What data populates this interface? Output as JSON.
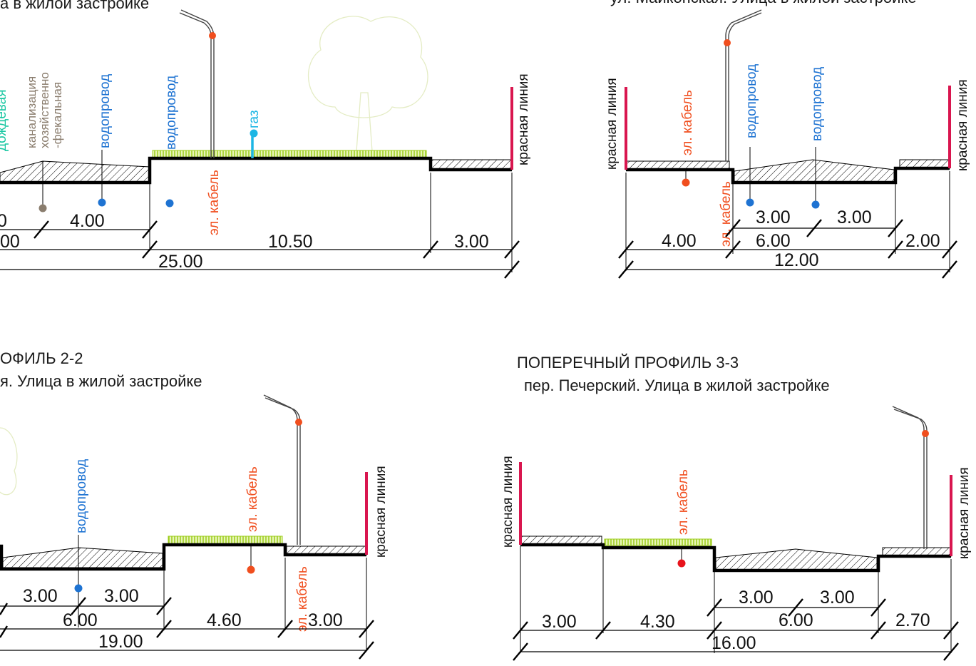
{
  "profiles": {
    "p1": {
      "subtitle": "а в жилой застройке",
      "labels": {
        "rain": "дождевая",
        "sewer_1": "канализация",
        "sewer_2": "хозяйственно",
        "sewer_3": "-фекальная",
        "water_a": "водопровод",
        "water_b": "водопровод",
        "cable": "эл. кабель",
        "gas": "газ",
        "red_line": "красная линия"
      },
      "dims": {
        "a": "0",
        "b": "4.00",
        "c": "00",
        "d": "10.50",
        "e": "3.00",
        "total": "25.00"
      }
    },
    "p4": {
      "subtitle": "ул. Майкопская. Улица в жилой застройке",
      "labels": {
        "red_left": "красная линия",
        "cable_a": "эл. кабель",
        "cable_b": "эл. кабель",
        "water_a": "водопровод",
        "water_b": "водопровод",
        "red_right": "красная линия"
      },
      "dims": {
        "s1": "3.00",
        "s2": "3.00",
        "a": "4.00",
        "b": "6.00",
        "c": "2.00",
        "total": "12.00"
      }
    },
    "p2": {
      "title": "ОФИЛЬ 2-2",
      "subtitle": "я. Улица в жилой застройке",
      "labels": {
        "water": "водопровод",
        "cable_a": "эл. кабель",
        "cable_b": "эл. кабель",
        "red_line": "красная линия"
      },
      "dims": {
        "s1": "3.00",
        "s2": "3.00",
        "a": "6.00",
        "b": "4.60",
        "c": "3.00",
        "total": "19.00"
      }
    },
    "p3": {
      "title": "ПОПЕРЕЧНЫЙ ПРОФИЛЬ 3-3",
      "subtitle": "пер. Печерский. Улица в жилой застройке",
      "labels": {
        "red_left": "красная линия",
        "cable": "эл. кабель",
        "red_right": "красная линия"
      },
      "dims": {
        "s1": "3.00",
        "s2": "3.00",
        "a": "3.00",
        "b": "4.30",
        "c": "6.00",
        "d": "2.70",
        "total": "16.00"
      }
    }
  },
  "colors": {
    "red_line": "#d9164f",
    "cable": "#f04e1e",
    "water": "#1e73d2",
    "gas": "#1cb6e4",
    "rain": "#19c7a2",
    "sewer": "#8a7d6e",
    "grass": "#9bcc1a"
  }
}
